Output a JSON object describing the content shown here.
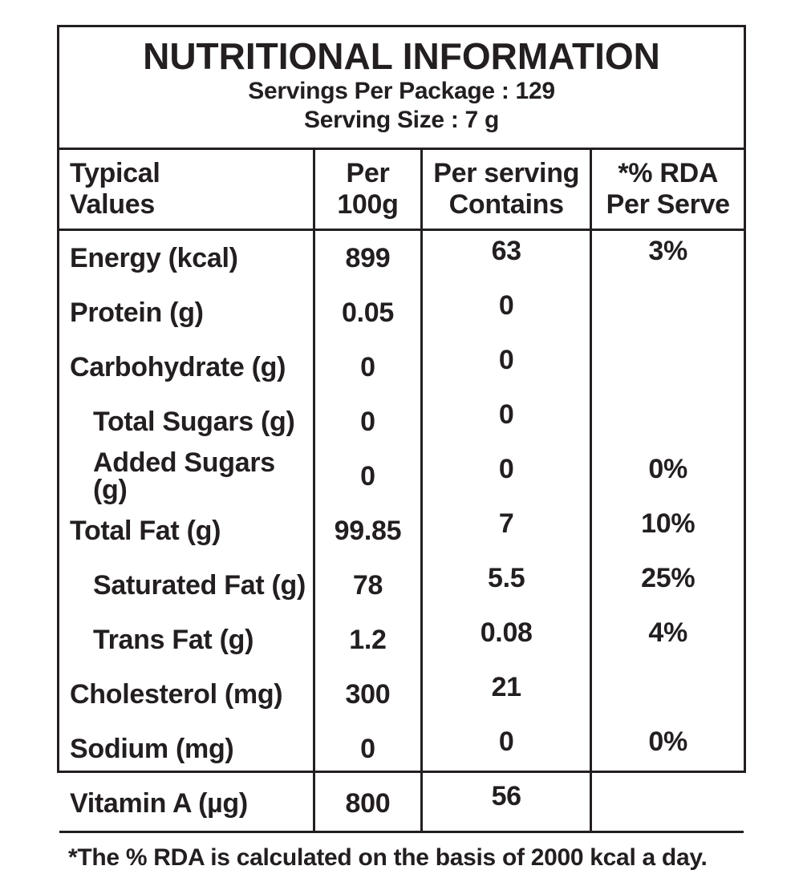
{
  "label": {
    "title": "NUTRITIONAL INFORMATION",
    "servings_per_package": "Servings Per Package : 129",
    "serving_size": "Serving Size : 7 g"
  },
  "table": {
    "columns": [
      {
        "line1": "Typical",
        "line2": "Values"
      },
      {
        "line1": "Per",
        "line2": "100g"
      },
      {
        "line1": "Per serving",
        "line2": "Contains"
      },
      {
        "line1": "*% RDA",
        "line2": "Per Serve"
      }
    ],
    "rows": [
      {
        "label": "Energy (kcal)",
        "indent": false,
        "per_100g": "899",
        "per_serving": "63",
        "rda_per_serve": "3%"
      },
      {
        "label": "Protein (g)",
        "indent": false,
        "per_100g": "0.05",
        "per_serving": "0",
        "rda_per_serve": ""
      },
      {
        "label": "Carbohydrate (g)",
        "indent": false,
        "per_100g": "0",
        "per_serving": "0",
        "rda_per_serve": ""
      },
      {
        "label": "Total Sugars (g)",
        "indent": true,
        "per_100g": "0",
        "per_serving": "0",
        "rda_per_serve": ""
      },
      {
        "label": "Added Sugars (g)",
        "indent": true,
        "per_100g": "0",
        "per_serving": "0",
        "rda_per_serve": "0%"
      },
      {
        "label": "Total Fat (g)",
        "indent": false,
        "per_100g": "99.85",
        "per_serving": "7",
        "rda_per_serve": "10%"
      },
      {
        "label": "Saturated Fat (g)",
        "indent": true,
        "per_100g": "78",
        "per_serving": "5.5",
        "rda_per_serve": "25%"
      },
      {
        "label": "Trans Fat (g)",
        "indent": true,
        "per_100g": "1.2",
        "per_serving": "0.08",
        "rda_per_serve": "4%"
      },
      {
        "label": "Cholesterol (mg)",
        "indent": false,
        "per_100g": "300",
        "per_serving": "21",
        "rda_per_serve": ""
      },
      {
        "label": "Sodium (mg)",
        "indent": false,
        "per_100g": "0",
        "per_serving": "0",
        "rda_per_serve": "0%"
      },
      {
        "label": "Vitamin A (µg)",
        "indent": false,
        "per_100g": "800",
        "per_serving": "56",
        "rda_per_serve": ""
      }
    ]
  },
  "footnote": "*The % RDA is calculated on the basis of 2000 kcal a day.",
  "colors": {
    "ink": "#231f20",
    "background": "#ffffff"
  }
}
